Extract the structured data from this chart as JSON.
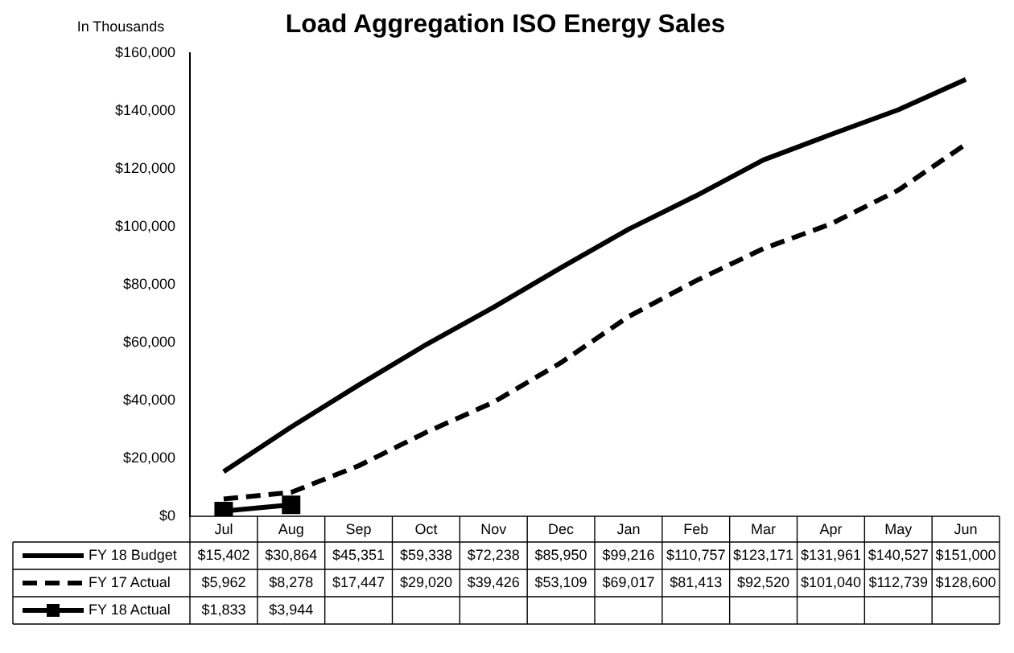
{
  "chart_data": {
    "type": "line",
    "title": "Load Aggregation ISO Energy Sales",
    "ylabel": "In Thousands",
    "categories": [
      "Jul",
      "Aug",
      "Sep",
      "Oct",
      "Nov",
      "Dec",
      "Jan",
      "Feb",
      "Mar",
      "Apr",
      "May",
      "Jun"
    ],
    "series": [
      {
        "name": "FY 18 Budget",
        "color": "#000000",
        "line_style": "solid",
        "marker": "none",
        "values": [
          15402,
          30864,
          45351,
          59338,
          72238,
          85950,
          99216,
          110757,
          123171,
          131961,
          140527,
          151000
        ],
        "value_labels": [
          "$15,402",
          "$30,864",
          "$45,351",
          "$59,338",
          "$72,238",
          "$85,950",
          "$99,216",
          "$110,757",
          "$123,171",
          "$131,961",
          "$140,527",
          "$151,000"
        ]
      },
      {
        "name": "FY 17 Actual",
        "color": "#000000",
        "line_style": "dashed",
        "marker": "none",
        "values": [
          5962,
          8278,
          17447,
          29020,
          39426,
          53109,
          69017,
          81413,
          92520,
          101040,
          112739,
          128600
        ],
        "value_labels": [
          "$5,962",
          "$8,278",
          "$17,447",
          "$29,020",
          "$39,426",
          "$53,109",
          "$69,017",
          "$81,413",
          "$92,520",
          "$101,040",
          "$112,739",
          "$128,600"
        ]
      },
      {
        "name": "FY 18 Actual",
        "color": "#000000",
        "line_style": "solid",
        "marker": "square",
        "values": [
          1833,
          3944,
          null,
          null,
          null,
          null,
          null,
          null,
          null,
          null,
          null,
          null
        ],
        "value_labels": [
          "$1,833",
          "$3,944",
          null,
          null,
          null,
          null,
          null,
          null,
          null,
          null,
          null,
          null
        ]
      }
    ],
    "ylim": [
      0,
      160000
    ],
    "yticks": [
      {
        "value": 0,
        "label": "$0"
      },
      {
        "value": 20000,
        "label": "$20,000"
      },
      {
        "value": 40000,
        "label": "$40,000"
      },
      {
        "value": 60000,
        "label": "$60,000"
      },
      {
        "value": 80000,
        "label": "$80,000"
      },
      {
        "value": 100000,
        "label": "$100,000"
      },
      {
        "value": 120000,
        "label": "$120,000"
      },
      {
        "value": 140000,
        "label": "$140,000"
      },
      {
        "value": 160000,
        "label": "$160,000"
      }
    ],
    "grid": false,
    "legend": "bottom"
  }
}
